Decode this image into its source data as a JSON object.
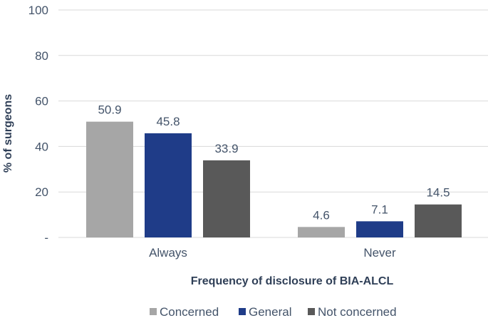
{
  "chart_data": {
    "type": "bar",
    "categories": [
      "Always",
      "Never"
    ],
    "series": [
      {
        "name": "Concerned",
        "values": [
          50.9,
          4.6
        ],
        "color": "#a6a6a6"
      },
      {
        "name": "General",
        "values": [
          45.8,
          7.1
        ],
        "color": "#1f3c88"
      },
      {
        "name": "Not concerned",
        "values": [
          33.9,
          14.5
        ],
        "color": "#595959"
      }
    ],
    "data_labels": [
      [
        "50.9",
        "4.6"
      ],
      [
        "45.8",
        "7.1"
      ],
      [
        "33.9",
        "14.5"
      ]
    ],
    "title": "",
    "xlabel": "Frequency of disclosure of BIA-ALCL",
    "ylabel": "% of surgeons",
    "ylim": [
      0,
      100
    ],
    "yticks": [
      0,
      20,
      40,
      60,
      80,
      100
    ],
    "ytick_labels": [
      "-",
      "20",
      "40",
      "60",
      "80",
      "100"
    ],
    "grid": true,
    "legend_position": "bottom"
  }
}
